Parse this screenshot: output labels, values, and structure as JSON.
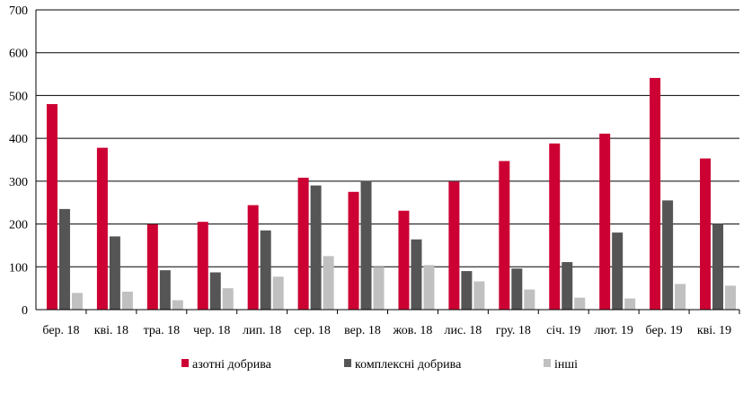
{
  "chart_data": {
    "type": "bar",
    "categories": [
      "бер. 18",
      "кві. 18",
      "тра. 18",
      "чер. 18",
      "лип. 18",
      "сер. 18",
      "вер. 18",
      "жов. 18",
      "лис. 18",
      "гру. 18",
      "січ. 19",
      "лют. 19",
      "бер. 19",
      "кві. 19"
    ],
    "series": [
      {
        "name": "азотні добрива",
        "color": "#cc0033",
        "values": [
          480,
          378,
          199,
          205,
          244,
          308,
          275,
          231,
          299,
          347,
          388,
          411,
          541,
          353
        ]
      },
      {
        "name": "комплексні добрива",
        "color": "#555555",
        "values": [
          235,
          171,
          92,
          87,
          185,
          290,
          301,
          164,
          90,
          96,
          111,
          180,
          255,
          200
        ]
      },
      {
        "name": "інші",
        "color": "#c0c0c0",
        "values": [
          39,
          42,
          22,
          50,
          77,
          125,
          100,
          104,
          66,
          47,
          28,
          26,
          60,
          56
        ]
      }
    ],
    "yticks": [
      "0",
      "100",
      "200",
      "300",
      "400",
      "500",
      "600",
      "700"
    ],
    "ylim": [
      0,
      700
    ],
    "grid": true,
    "legend_position": "bottom"
  }
}
